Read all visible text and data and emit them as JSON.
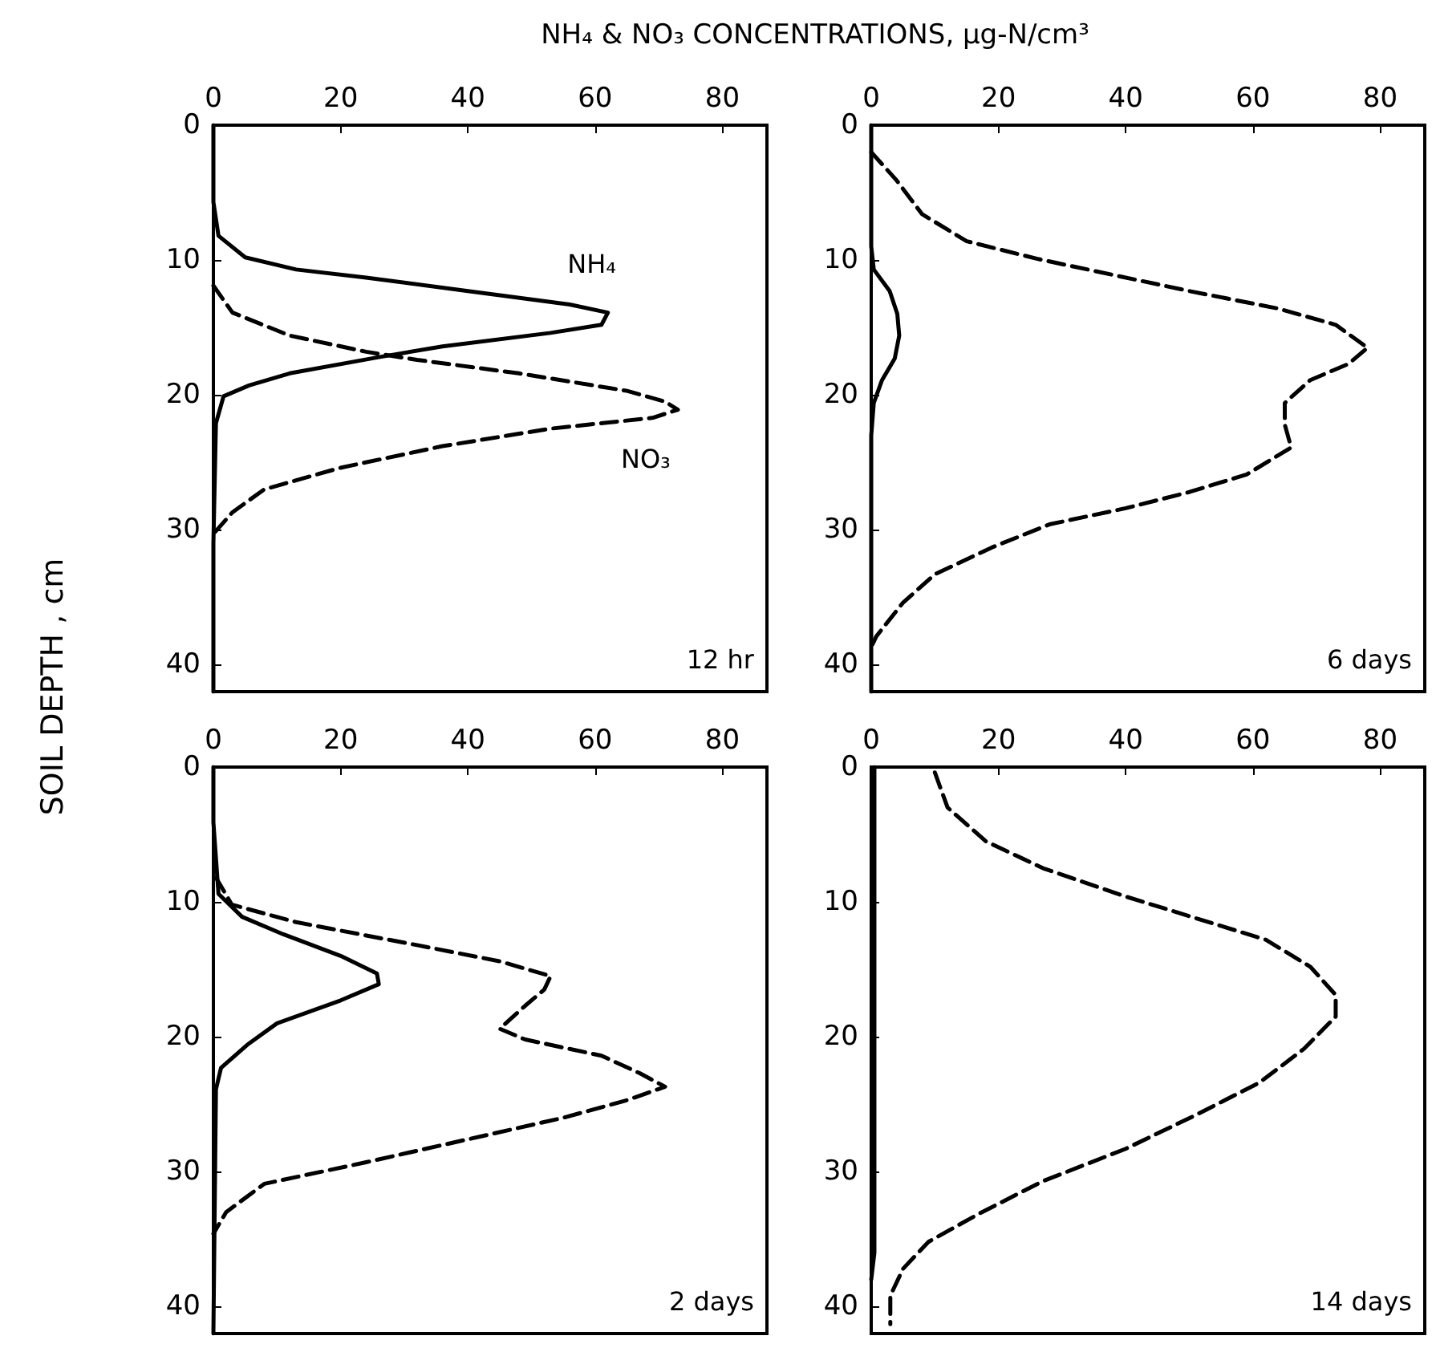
{
  "chart_data": [
    {
      "type": "line",
      "xlabel": "NH₄ & NO₃ CONCENTRATIONS, μg-N/cm³",
      "ylabel": "SOIL DEPTH , cm",
      "annotations": [
        "12 hr"
      ],
      "xlim": [
        0,
        87
      ],
      "xticks": [
        0,
        20,
        40,
        60,
        80
      ],
      "ylim": [
        42,
        0
      ],
      "yticks": [
        0,
        10,
        20,
        30,
        40
      ],
      "legend": false,
      "grid": false,
      "series": [
        {
          "name": "NH₄",
          "color": "#000000",
          "line_style": "solid",
          "x": [
            0,
            0,
            0.8,
            5,
            13,
            24,
            40,
            56,
            62,
            61,
            53,
            36,
            26,
            12,
            5.6,
            1.6,
            0.4,
            0,
            0
          ],
          "values": [
            0,
            5.7,
            8.2,
            9.8,
            10.7,
            11.3,
            12.3,
            13.3,
            13.9,
            14.8,
            15.4,
            16.4,
            17.2,
            18.4,
            19.3,
            20.1,
            22.1,
            31,
            42
          ]
        },
        {
          "name": "NO₃",
          "color": "#000000",
          "line_style": "dashed",
          "x": [
            0,
            3,
            12,
            24,
            32,
            48,
            65,
            71,
            73,
            69,
            53,
            36,
            20,
            8,
            3,
            0
          ],
          "values": [
            11.9,
            13.9,
            15.6,
            16.8,
            17.4,
            18.4,
            19.7,
            20.5,
            21.1,
            21.7,
            22.5,
            23.8,
            25.4,
            27,
            28.7,
            30.3
          ]
        }
      ]
    },
    {
      "type": "line",
      "annotations": [
        "6 days"
      ],
      "xlim": [
        0,
        87
      ],
      "xticks": [
        0,
        20,
        40,
        60,
        80
      ],
      "ylim": [
        42,
        0
      ],
      "yticks": [
        0,
        10,
        20,
        30,
        40
      ],
      "legend": false,
      "grid": false,
      "series": [
        {
          "color": "#000000",
          "line_style": "solid",
          "x": [
            0,
            0,
            0.4,
            2.9,
            4.1,
            4.4,
            3.7,
            1.7,
            0.4,
            0,
            0
          ],
          "values": [
            0,
            9,
            10.7,
            12.3,
            14,
            15.6,
            17.3,
            18.9,
            20.6,
            23,
            42
          ]
        },
        {
          "color": "#000000",
          "line_style": "dashed",
          "x": [
            0,
            4,
            8,
            15,
            26,
            38,
            50,
            64,
            73,
            78,
            75,
            69,
            65,
            65,
            66,
            59,
            50,
            40,
            28,
            19,
            10,
            5,
            0.8,
            0
          ],
          "values": [
            2,
            4.1,
            6.6,
            8.6,
            9.9,
            11.1,
            12.3,
            13.6,
            14.8,
            16.5,
            17.7,
            18.9,
            20.6,
            22.2,
            23.9,
            25.9,
            27.2,
            28.4,
            29.6,
            31.3,
            33.3,
            35.4,
            37.9,
            38.7
          ]
        }
      ]
    },
    {
      "type": "line",
      "annotations": [
        "2 days"
      ],
      "xlim": [
        0,
        87
      ],
      "xticks": [
        0,
        20,
        40,
        60,
        80
      ],
      "ylim": [
        42,
        0
      ],
      "yticks": [
        0,
        10,
        20,
        30,
        40
      ],
      "legend": false,
      "grid": false,
      "series": [
        {
          "color": "#000000",
          "line_style": "solid",
          "x": [
            0,
            0,
            0.8,
            4.5,
            11,
            20,
            25.7,
            26,
            20,
            10,
            5.3,
            1.2,
            0.4,
            0
          ],
          "values": [
            0,
            4.1,
            9.4,
            11.1,
            12.4,
            14,
            15.3,
            16.1,
            17.3,
            19,
            20.6,
            22.3,
            23.9,
            42
          ]
        },
        {
          "color": "#000000",
          "line_style": "dashed",
          "x": [
            0.4,
            2.9,
            13,
            32,
            45,
            53,
            52,
            49,
            45,
            49,
            61,
            67,
            71,
            65,
            55,
            40,
            24,
            8,
            2,
            0
          ],
          "values": [
            8.2,
            10.2,
            11.5,
            13.2,
            14.4,
            15.5,
            16.5,
            17.7,
            19.4,
            20.2,
            21.4,
            22.7,
            23.7,
            24.7,
            26,
            27.6,
            29.3,
            30.9,
            33,
            34.6
          ]
        }
      ]
    },
    {
      "type": "line",
      "annotations": [
        "14 days"
      ],
      "xlim": [
        0,
        87
      ],
      "xticks": [
        0,
        20,
        40,
        60,
        80
      ],
      "ylim": [
        42,
        0
      ],
      "yticks": [
        0,
        10,
        20,
        30,
        40
      ],
      "legend": false,
      "grid": false,
      "series": [
        {
          "color": "#000000",
          "line_style": "solid",
          "x": [
            0.5,
            0.5,
            0
          ],
          "values": [
            0,
            36,
            38
          ]
        },
        {
          "color": "#000000",
          "line_style": "dashed",
          "x": [
            10,
            12,
            18,
            27,
            40,
            51,
            62,
            69,
            73,
            73,
            68,
            61,
            51,
            40,
            27,
            17,
            9,
            5,
            3,
            3
          ],
          "values": [
            0.4,
            3,
            5.5,
            7.5,
            9.6,
            11.2,
            12.8,
            14.8,
            16.9,
            18.5,
            20.9,
            23.4,
            25.8,
            28.3,
            30.7,
            33.1,
            35.2,
            37.2,
            39.2,
            41.3
          ]
        }
      ]
    }
  ]
}
